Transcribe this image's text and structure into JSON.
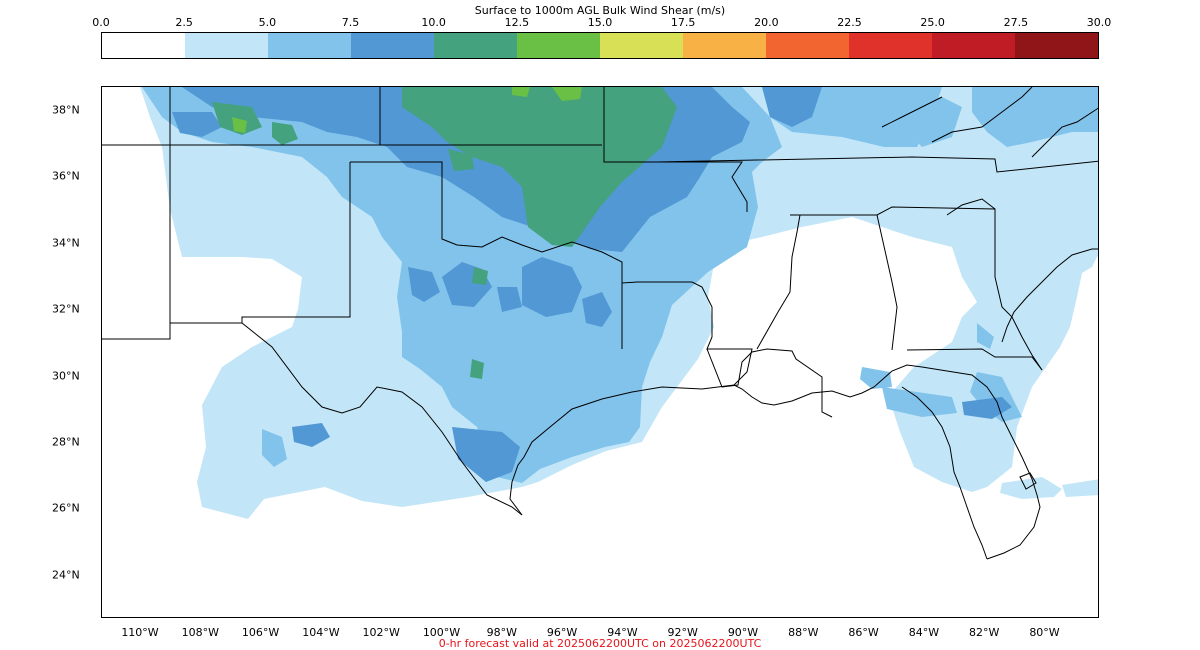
{
  "colorbar": {
    "title": "Surface to 1000m AGL Bulk Wind Shear (m/s)",
    "ticks": [
      "0.0",
      "2.5",
      "5.0",
      "7.5",
      "10.0",
      "12.5",
      "15.0",
      "17.5",
      "20.0",
      "22.5",
      "25.0",
      "27.5",
      "30.0"
    ],
    "colors": [
      "#ffffff",
      "#c2e6f8",
      "#82c3ec",
      "#5198d4",
      "#44a27e",
      "#6ac045",
      "#d8e055",
      "#f8b144",
      "#f26531",
      "#e0322a",
      "#bf1c25",
      "#901519"
    ]
  },
  "map": {
    "lat_labels": [
      "38°N",
      "36°N",
      "34°N",
      "32°N",
      "30°N",
      "28°N",
      "26°N",
      "24°N"
    ],
    "lon_labels": [
      "110°W",
      "108°W",
      "106°W",
      "104°W",
      "102°W",
      "100°W",
      "98°W",
      "96°W",
      "94°W",
      "92°W",
      "90°W",
      "88°W",
      "86°W",
      "84°W",
      "82°W",
      "80°W"
    ],
    "colors": {
      "land": "#ffffff",
      "border": "#000000"
    }
  },
  "footer": {
    "text": "0-hr forecast valid at 2025062200UTC on 2025062200UTC",
    "color": "#e8141c"
  }
}
